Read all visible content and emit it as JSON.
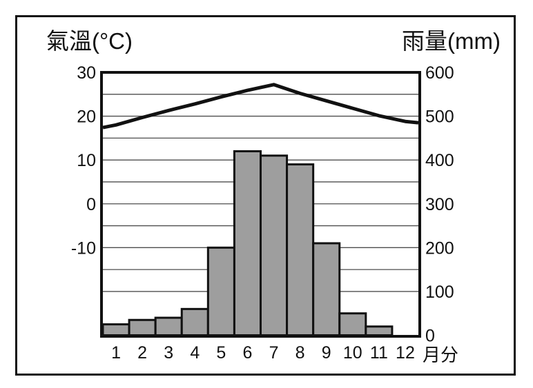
{
  "figure": {
    "background": "#ffffff",
    "frame_color": "#111111"
  },
  "chart_data": {
    "type": "bar+line",
    "subtype": "climograph",
    "title": "",
    "temp_axis": {
      "title": "氣溫(°C)",
      "side": "left",
      "ticks": [
        "30",
        "20",
        "10",
        "0",
        "-10"
      ],
      "tick_values": [
        30,
        20,
        10,
        0,
        -10
      ],
      "range": [
        -30,
        30
      ],
      "unit": "°C"
    },
    "rain_axis": {
      "title": "雨量(mm)",
      "side": "right",
      "ticks": [
        "600",
        "500",
        "400",
        "300",
        "200",
        "100",
        "0"
      ],
      "tick_values": [
        600,
        500,
        400,
        300,
        200,
        100,
        0
      ],
      "range": [
        0,
        600
      ],
      "unit": "mm"
    },
    "x_axis": {
      "labels": [
        "1",
        "2",
        "3",
        "4",
        "5",
        "6",
        "7",
        "8",
        "9",
        "10",
        "11",
        "12"
      ],
      "suffix": "月分"
    },
    "gridlines_mm": [
      550,
      500,
      450,
      400,
      350,
      300,
      250,
      200,
      150,
      100
    ],
    "series": [
      {
        "name": "雨量",
        "display": "bar",
        "axis": "right",
        "unit": "mm",
        "values": [
          25,
          35,
          40,
          60,
          200,
          420,
          410,
          390,
          210,
          50,
          20,
          0
        ],
        "color": "#9e9e9e",
        "border_color": "#111111"
      },
      {
        "name": "氣溫",
        "display": "line",
        "axis": "left",
        "unit": "°C",
        "values": [
          18,
          19.7,
          21.3,
          22.8,
          24.4,
          25.9,
          27.2,
          25.2,
          23.5,
          21.8,
          20.1,
          18.8
        ],
        "edge_start": 17.4,
        "edge_end": 18.5,
        "color": "#111111",
        "line_width": 5
      }
    ],
    "colors": {
      "frame": "#111111",
      "grid": "#4d4d4d",
      "text": "#111111",
      "bar_fill": "#9e9e9e",
      "background": "#ffffff"
    }
  }
}
